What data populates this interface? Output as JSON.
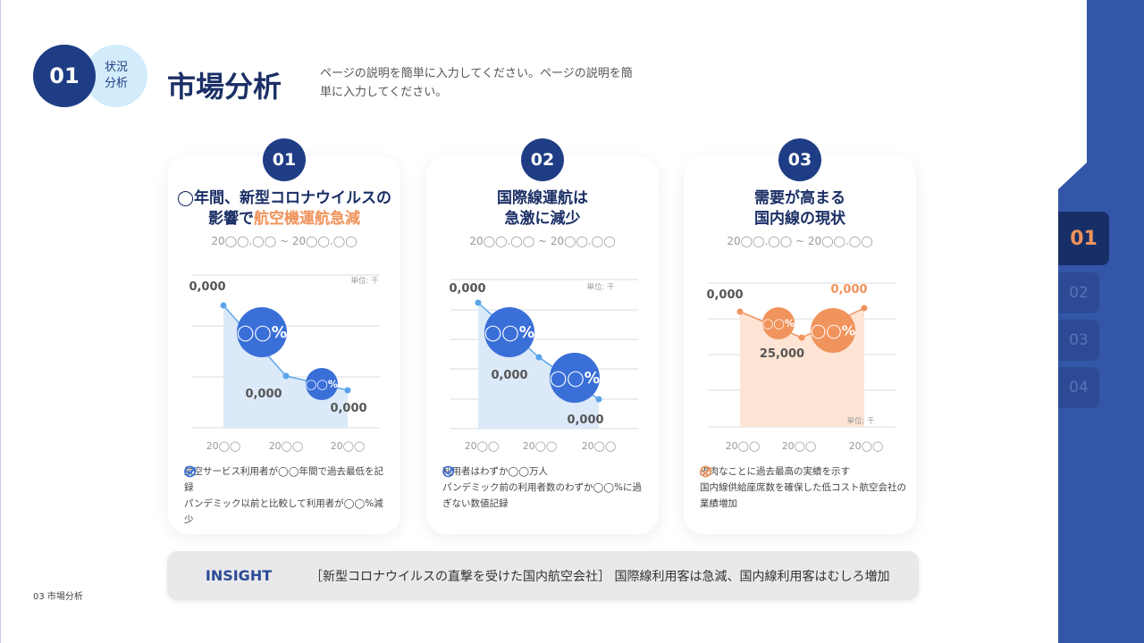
{
  "header": {
    "badge_number": "01",
    "badge_label": "状況\n分析",
    "title": "市場分析",
    "description": "ページの説明を簡単に入力してください。ページの説明を簡単に入力してください。"
  },
  "colors": {
    "navy": "#1f3d85",
    "blue": "#3a6fd8",
    "light_blue": "#dbe9f8",
    "orange": "#f0935c",
    "light_orange": "#fde4d4",
    "sidebar": "#3356a8"
  },
  "sidebar": {
    "items": [
      {
        "label": "01",
        "active": true
      },
      {
        "label": "02"
      },
      {
        "label": "03"
      },
      {
        "label": "04"
      }
    ]
  },
  "cards": [
    {
      "number": "01",
      "title_line1": "◯年間、新型コロナウイルスの",
      "title_line2_pre": "影響で",
      "title_line2_hl": "航空機運航急減",
      "date": "20◯◯.◯◯ ~ 20◯◯.◯◯",
      "unit": "単位: 千",
      "bullets": [
        "航空サービス利用者が◯◯年間で過去最低を記録",
        "パンデミック以前と比較して利用者が◯◯%減少"
      ]
    },
    {
      "number": "02",
      "title_line1": "国際線運航は",
      "title_line2_pre": "急激に減少",
      "title_line2_hl": "",
      "date": "20◯◯.◯◯ ~ 20◯◯.◯◯",
      "unit": "単位: 千",
      "bullets": [
        "利用者はわずか◯◯万人\nパンデミック前の利用者数のわずか◯◯%に過ぎない数値記録"
      ]
    },
    {
      "number": "03",
      "title_line1": "需要が高まる",
      "title_line2_pre": "国内線の現状",
      "title_line2_hl": "",
      "date": "20◯◯.◯◯ ~ 20◯◯.◯◯",
      "unit": "単位: 千",
      "bullets": [
        "皮肉なことに過去最高の実績を示す",
        "国内線供給座席数を確保した低コスト航空会社の業績増加"
      ]
    }
  ],
  "chart_data": [
    {
      "type": "area",
      "categories": [
        "20◯◯",
        "20◯◯",
        "20◯◯"
      ],
      "point_labels": [
        "0,000",
        "0,000",
        "0,000"
      ],
      "change_labels": [
        "◯◯%",
        "◯◯%"
      ],
      "unit": "単位: 千",
      "color": "#3a6fd8",
      "trend": "decreasing"
    },
    {
      "type": "area",
      "categories": [
        "20◯◯",
        "20◯◯",
        "20◯◯"
      ],
      "point_labels": [
        "0,000",
        "0,000",
        "0,000"
      ],
      "change_labels": [
        "◯◯%",
        "◯◯%"
      ],
      "unit": "単位: 千",
      "color": "#3a6fd8",
      "trend": "decreasing"
    },
    {
      "type": "area",
      "categories": [
        "20◯◯",
        "20◯◯",
        "20◯◯"
      ],
      "point_labels": [
        "0,000",
        "25,000",
        "0,000"
      ],
      "change_labels": [
        "◯◯%",
        "◯◯%"
      ],
      "unit": "単位: 千",
      "color": "#f0935c",
      "trend": "dip-then-rise"
    }
  ],
  "insight": {
    "label": "INSIGHT",
    "text": "［新型コロナウイルスの直撃を受けた国内航空会社］ 国際線利用客は急減、国内線利用客はむしろ増加"
  },
  "footer": "03 市場分析"
}
